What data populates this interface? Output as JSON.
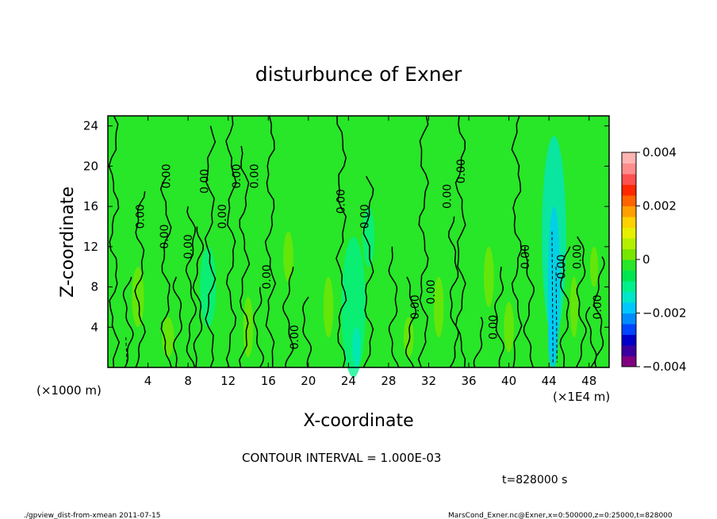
{
  "chart_data": {
    "type": "heatmap",
    "subtype": "filled-contour",
    "title": "disturbunce of Exner",
    "xlabel": "X-coordinate",
    "ylabel": "Z-coordinate",
    "x_unit_left": "(×1000 m)",
    "x_unit_right": "(×1E4 m)",
    "xlim": [
      0,
      50
    ],
    "ylim": [
      0,
      25
    ],
    "x_ticks": [
      4,
      8,
      12,
      16,
      20,
      24,
      28,
      32,
      36,
      40,
      44,
      48
    ],
    "y_ticks": [
      4,
      8,
      12,
      16,
      20,
      24
    ],
    "x_tick_labels": [
      "4",
      "8",
      "12",
      "16",
      "20",
      "24",
      "28",
      "32",
      "36",
      "40",
      "44",
      "48"
    ],
    "y_tick_labels": [
      "4",
      "8",
      "12",
      "16",
      "20",
      "24"
    ],
    "colorbar": {
      "range": [
        -0.004,
        0.004
      ],
      "ticks": [
        0.004,
        0.002,
        0,
        -0.002,
        -0.004
      ],
      "tick_labels": [
        "0.004",
        "0.002",
        "0",
        "−0.002",
        "−0.004"
      ],
      "colors": [
        "#800080",
        "#3b00a0",
        "#0000c8",
        "#0046ff",
        "#008cff",
        "#00c8ff",
        "#00e6c8",
        "#00f08c",
        "#00e650",
        "#28e628",
        "#78e600",
        "#b4f000",
        "#e6f000",
        "#ffd200",
        "#ffa000",
        "#ff6400",
        "#ff2800",
        "#ff5050",
        "#ff8c8c",
        "#ffb4b4"
      ]
    },
    "background_value": 0,
    "background_color": "#28e628",
    "contour_interval": 0.001,
    "contour_labels": [
      "0.00",
      "0.00",
      "0.00",
      "0.00",
      "0.00",
      "0.00",
      "0.00",
      "0.00",
      "0.00",
      "0.00",
      "0.00",
      "0.00",
      "0.00",
      "0.00",
      "0.00",
      "0.00",
      "0.00",
      "0.00",
      "0.00",
      "0.00",
      "0.00"
    ]
  },
  "texts": {
    "contour_interval": "CONTOUR INTERVAL = 1.000E-03",
    "time": "t=828000 s",
    "footer_left": "./gpview_dist-from-xmean  2011-07-15",
    "footer_right": "MarsCond_Exner.nc@Exner,x=0:500000,z=0:25000,t=828000"
  }
}
